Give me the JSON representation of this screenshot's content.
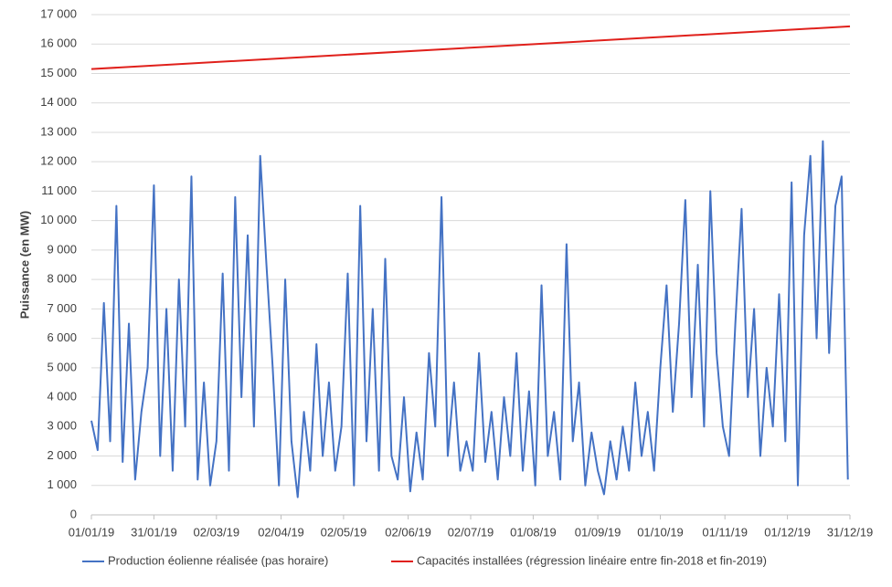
{
  "chart_data": {
    "type": "line",
    "y_label": "Puissance (en MW)",
    "xlim": [
      "2019-01-01",
      "2019-12-31"
    ],
    "xticks": [
      {
        "value": "2019-01-01",
        "label": "01/01/19"
      },
      {
        "value": "2019-01-31",
        "label": "31/01/19"
      },
      {
        "value": "2019-03-02",
        "label": "02/03/19"
      },
      {
        "value": "2019-04-02",
        "label": "02/04/19"
      },
      {
        "value": "2019-05-02",
        "label": "02/05/19"
      },
      {
        "value": "2019-06-02",
        "label": "02/06/19"
      },
      {
        "value": "2019-07-02",
        "label": "02/07/19"
      },
      {
        "value": "2019-08-01",
        "label": "01/08/19"
      },
      {
        "value": "2019-09-01",
        "label": "01/09/19"
      },
      {
        "value": "2019-10-01",
        "label": "01/10/19"
      },
      {
        "value": "2019-11-01",
        "label": "01/11/19"
      },
      {
        "value": "2019-12-01",
        "label": "01/12/19"
      },
      {
        "value": "2019-12-31",
        "label": "31/12/19"
      }
    ],
    "ylim": [
      0,
      17000
    ],
    "yticks": [
      0,
      {
        "value": 1000,
        "label": "1 000"
      },
      {
        "value": 2000,
        "label": "2 000"
      },
      {
        "value": 3000,
        "label": "3 000"
      },
      {
        "value": 4000,
        "label": "4 000"
      },
      {
        "value": 5000,
        "label": "5 000"
      },
      {
        "value": 6000,
        "label": "6 000"
      },
      {
        "value": 7000,
        "label": "7 000"
      },
      {
        "value": 8000,
        "label": "8 000"
      },
      {
        "value": 9000,
        "label": "9 000"
      },
      {
        "value": 10000,
        "label": "10 000"
      },
      {
        "value": 11000,
        "label": "11 000"
      },
      {
        "value": 12000,
        "label": "12 000"
      },
      {
        "value": 13000,
        "label": "13 000"
      },
      {
        "value": 14000,
        "label": "14 000"
      },
      {
        "value": 15000,
        "label": "15 000"
      },
      {
        "value": 16000,
        "label": "16 000"
      },
      {
        "value": 17000,
        "label": "17 000"
      }
    ],
    "grid": true,
    "legend": "bottom",
    "series": [
      {
        "name": "Production éolienne réalisée (pas horaire)",
        "color": "#4472c4",
        "x": [
          "2019-01-01",
          "2019-01-04",
          "2019-01-07",
          "2019-01-10",
          "2019-01-13",
          "2019-01-16",
          "2019-01-19",
          "2019-01-22",
          "2019-01-25",
          "2019-01-28",
          "2019-01-31",
          "2019-02-03",
          "2019-02-06",
          "2019-02-09",
          "2019-02-12",
          "2019-02-15",
          "2019-02-18",
          "2019-02-21",
          "2019-02-24",
          "2019-02-27",
          "2019-03-02",
          "2019-03-05",
          "2019-03-08",
          "2019-03-11",
          "2019-03-14",
          "2019-03-17",
          "2019-03-20",
          "2019-03-23",
          "2019-03-26",
          "2019-03-29",
          "2019-04-01",
          "2019-04-04",
          "2019-04-07",
          "2019-04-10",
          "2019-04-13",
          "2019-04-16",
          "2019-04-19",
          "2019-04-22",
          "2019-04-25",
          "2019-04-28",
          "2019-05-01",
          "2019-05-04",
          "2019-05-07",
          "2019-05-10",
          "2019-05-13",
          "2019-05-16",
          "2019-05-19",
          "2019-05-22",
          "2019-05-25",
          "2019-05-28",
          "2019-05-31",
          "2019-06-03",
          "2019-06-06",
          "2019-06-09",
          "2019-06-12",
          "2019-06-15",
          "2019-06-18",
          "2019-06-21",
          "2019-06-24",
          "2019-06-27",
          "2019-06-30",
          "2019-07-03",
          "2019-07-06",
          "2019-07-09",
          "2019-07-12",
          "2019-07-15",
          "2019-07-18",
          "2019-07-21",
          "2019-07-24",
          "2019-07-27",
          "2019-07-30",
          "2019-08-02",
          "2019-08-05",
          "2019-08-08",
          "2019-08-11",
          "2019-08-14",
          "2019-08-17",
          "2019-08-20",
          "2019-08-23",
          "2019-08-26",
          "2019-08-29",
          "2019-09-01",
          "2019-09-04",
          "2019-09-07",
          "2019-09-10",
          "2019-09-13",
          "2019-09-16",
          "2019-09-19",
          "2019-09-22",
          "2019-09-25",
          "2019-09-28",
          "2019-10-01",
          "2019-10-04",
          "2019-10-07",
          "2019-10-10",
          "2019-10-13",
          "2019-10-16",
          "2019-10-19",
          "2019-10-22",
          "2019-10-25",
          "2019-10-28",
          "2019-10-31",
          "2019-11-03",
          "2019-11-06",
          "2019-11-09",
          "2019-11-12",
          "2019-11-15",
          "2019-11-18",
          "2019-11-21",
          "2019-11-24",
          "2019-11-27",
          "2019-11-30",
          "2019-12-03",
          "2019-12-06",
          "2019-12-09",
          "2019-12-12",
          "2019-12-15",
          "2019-12-18",
          "2019-12-21",
          "2019-12-24",
          "2019-12-27",
          "2019-12-30"
        ],
        "values": [
          3200,
          2200,
          7200,
          2500,
          10500,
          1800,
          6500,
          1200,
          3500,
          5000,
          11200,
          2000,
          7000,
          1500,
          8000,
          3000,
          11500,
          1200,
          4500,
          1000,
          2500,
          8200,
          1500,
          10800,
          4000,
          9500,
          3000,
          12200,
          8500,
          5000,
          1000,
          8000,
          2500,
          600,
          3500,
          1500,
          5800,
          2000,
          4500,
          1500,
          3000,
          8200,
          1000,
          10500,
          2500,
          7000,
          1500,
          8700,
          2000,
          1200,
          4000,
          800,
          2800,
          1200,
          5500,
          3000,
          10800,
          2000,
          4500,
          1500,
          2500,
          1500,
          5500,
          1800,
          3500,
          1200,
          4000,
          2000,
          5500,
          1500,
          4200,
          1000,
          7800,
          2000,
          3500,
          1200,
          9200,
          2500,
          4500,
          1000,
          2800,
          1500,
          700,
          2500,
          1200,
          3000,
          1500,
          4500,
          2000,
          3500,
          1500,
          5000,
          7800,
          3500,
          6500,
          10700,
          4000,
          8500,
          3000,
          11000,
          5500,
          3000,
          2000,
          6500,
          10400,
          4000,
          7000,
          2000,
          5000,
          3000,
          7500,
          2500,
          11300,
          1000,
          9500,
          12200,
          6000,
          12700,
          5500,
          10500,
          11500,
          1200
        ]
      },
      {
        "name": "Capacités installées (régression linéaire entre fin-2018 et fin-2019)",
        "color": "#e0201b",
        "x": [
          "2019-01-01",
          "2019-12-31"
        ],
        "values": [
          15150,
          16600
        ]
      }
    ]
  }
}
